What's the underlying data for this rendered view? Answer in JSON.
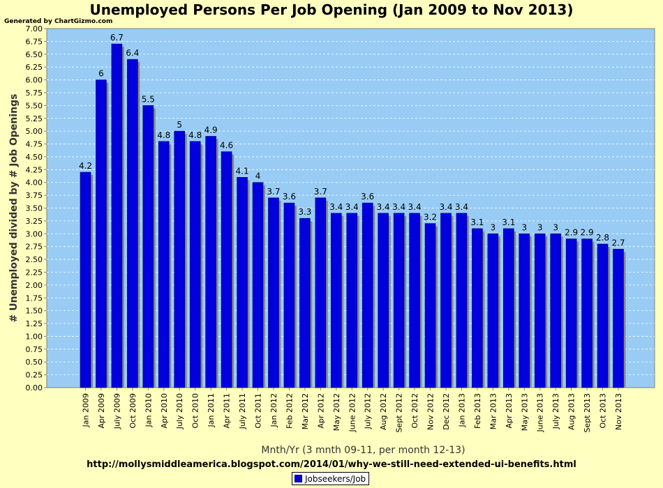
{
  "chart_data": {
    "type": "bar",
    "title": "Unemployed Persons Per Job Opening (Jan 2009 to Nov 2013)",
    "generated_by": "Generated by ChartGizmo.com",
    "source": "http://mollysmiddleamerica.blogspot.com/2014/01/why-we-still-need-extended-ui-benefits.html",
    "xlabel": "Mnth/Yr (3 mnth 09-11, per month 12-13)",
    "ylabel": "# Unemployed divided by # Job Openings",
    "ylim": [
      0,
      7
    ],
    "ytick_step": 0.25,
    "ytick_labels": [
      "0.00",
      "0.25",
      "0.50",
      "0.75",
      "1.00",
      "1.25",
      "1.50",
      "1.75",
      "2.00",
      "2.25",
      "2.50",
      "2.75",
      "3.00",
      "3.25",
      "3.50",
      "3.75",
      "4.00",
      "4.25",
      "4.50",
      "4.75",
      "5.00",
      "5.25",
      "5.50",
      "5.75",
      "6.00",
      "6.25",
      "6.50",
      "6.75",
      "7.00"
    ],
    "grid": true,
    "legend_position": "bottom-center",
    "categories": [
      "Jan 2009",
      "Apr 2009",
      "July 2009",
      "Oct 2009",
      "Jan 2010",
      "Apr 2010",
      "July 2010",
      "Oct 2010",
      "Jan 2011",
      "Apr 2011",
      "July 2011",
      "Oct 2011",
      "Jan 2012",
      "Feb 2012",
      "Mar 2012",
      "Apr 2012",
      "May 2012",
      "June 2012",
      "July 2012",
      "Aug 2012",
      "Sept 2012",
      "Oct 2012",
      "Nov 2012",
      "Dec 2012",
      "Jan 2013",
      "Feb 2013",
      "Mar 2013",
      "Apr 2013",
      "May 2013",
      "June 2013",
      "July 2013",
      "Aug 2013",
      "Sept 2013",
      "Oct 2013",
      "Nov 2013"
    ],
    "series": [
      {
        "name": "Jobseekers/Job",
        "values": [
          4.2,
          6,
          6.7,
          6.4,
          5.5,
          4.8,
          5,
          4.8,
          4.9,
          4.6,
          4.1,
          4,
          3.7,
          3.6,
          3.3,
          3.7,
          3.4,
          3.4,
          3.6,
          3.4,
          3.4,
          3.4,
          3.2,
          3.4,
          3.4,
          3.1,
          3,
          3.1,
          3,
          3,
          3,
          2.9,
          2.9,
          2.8,
          2.7
        ]
      }
    ],
    "colors": {
      "page_background": "#ffffc0",
      "plot_background": "#99ccf5",
      "bar": "#0000dd",
      "bar_shadow": "#888888",
      "grid": "#ffffff"
    }
  }
}
